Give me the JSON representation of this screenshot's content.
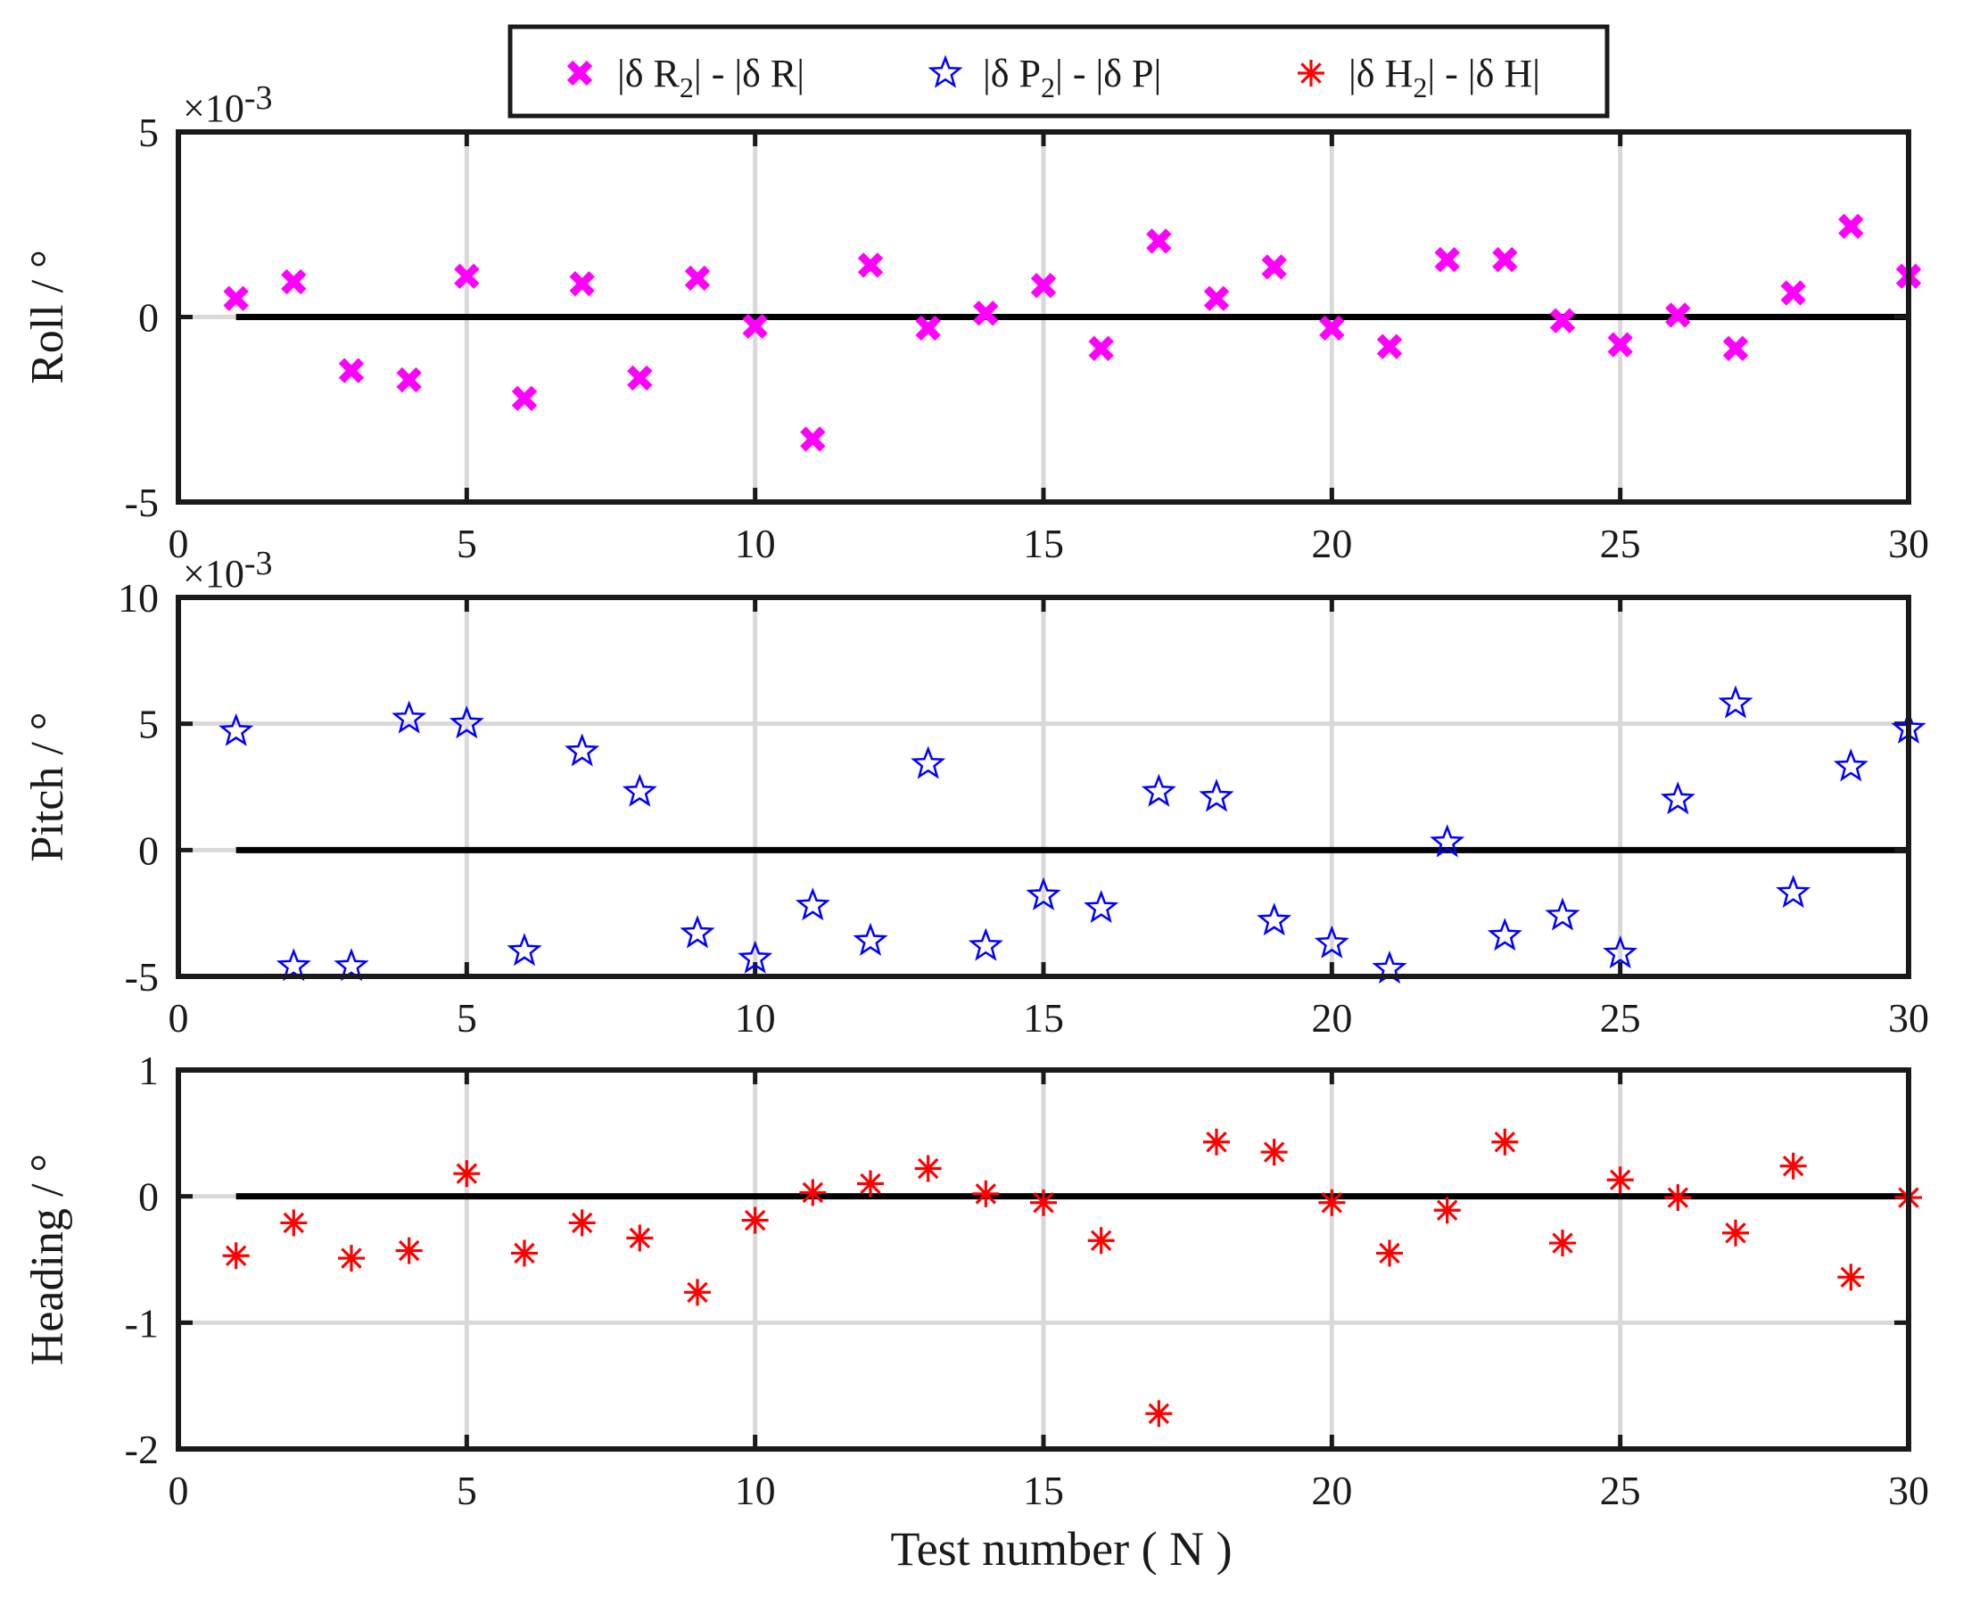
{
  "chart_data": [
    {
      "type": "scatter",
      "id": "roll",
      "ylabel": "Roll / °",
      "multiplier": "×10",
      "multiplier_exp": "-3",
      "xlim": [
        0,
        30
      ],
      "ylim": [
        -5,
        5
      ],
      "xticks": [
        0,
        5,
        10,
        15,
        20,
        25,
        30
      ],
      "yticks": [
        -5,
        0,
        5
      ],
      "grid": true,
      "marker": "x",
      "color": "#ff00ff",
      "series": [
        {
          "name": "|δ R2| - |δ R|",
          "x": [
            1,
            2,
            3,
            4,
            5,
            6,
            7,
            8,
            9,
            10,
            11,
            12,
            13,
            14,
            15,
            16,
            17,
            18,
            19,
            20,
            21,
            22,
            23,
            24,
            25,
            26,
            27,
            28,
            29,
            30
          ],
          "values": [
            0.5,
            0.95,
            -1.45,
            -1.7,
            1.1,
            -2.2,
            0.9,
            -1.65,
            1.05,
            -0.25,
            -3.3,
            1.4,
            -0.3,
            0.1,
            0.85,
            -0.85,
            2.05,
            0.5,
            1.35,
            -0.3,
            -0.8,
            1.55,
            1.55,
            -0.1,
            -0.75,
            0.05,
            -0.85,
            0.65,
            2.45,
            1.1
          ]
        }
      ]
    },
    {
      "type": "scatter",
      "id": "pitch",
      "ylabel": "Pitch / °",
      "multiplier": "×10",
      "multiplier_exp": "-3",
      "xlim": [
        0,
        30
      ],
      "ylim": [
        -5,
        10
      ],
      "xticks": [
        0,
        5,
        10,
        15,
        20,
        25,
        30
      ],
      "yticks": [
        -5,
        0,
        5,
        10
      ],
      "grid": true,
      "marker": "pentagram",
      "color": "#0000ff",
      "series": [
        {
          "name": "|δ P2| - |δ P|",
          "x": [
            1,
            2,
            3,
            4,
            5,
            6,
            7,
            8,
            9,
            10,
            11,
            12,
            13,
            14,
            15,
            16,
            17,
            18,
            19,
            20,
            21,
            22,
            23,
            24,
            25,
            26,
            27,
            28,
            29,
            30
          ],
          "values": [
            4.7,
            -4.6,
            -4.6,
            5.2,
            5.0,
            -4.0,
            3.9,
            2.3,
            -3.3,
            -4.3,
            -2.2,
            -3.6,
            3.4,
            -3.8,
            -1.8,
            -2.3,
            2.3,
            2.1,
            -2.8,
            -3.7,
            -4.7,
            0.3,
            -3.4,
            -2.6,
            -4.1,
            2.0,
            5.8,
            -1.7,
            3.3,
            4.8
          ]
        }
      ]
    },
    {
      "type": "scatter",
      "id": "heading",
      "ylabel": "Heading / °",
      "xlabel": "Test number ( N )",
      "xlim": [
        0,
        30
      ],
      "ylim": [
        -2,
        1
      ],
      "xticks": [
        0,
        5,
        10,
        15,
        20,
        25,
        30
      ],
      "yticks": [
        -2,
        -1,
        0,
        1
      ],
      "grid": true,
      "marker": "asterisk",
      "color": "#ff0000",
      "series": [
        {
          "name": "|δ H2| - |δ H|",
          "x": [
            1,
            2,
            3,
            4,
            5,
            6,
            7,
            8,
            9,
            10,
            11,
            12,
            13,
            14,
            15,
            16,
            17,
            18,
            19,
            20,
            21,
            22,
            23,
            24,
            25,
            26,
            27,
            28,
            29,
            30
          ],
          "values": [
            -0.47,
            -0.21,
            -0.49,
            -0.43,
            0.18,
            -0.45,
            -0.21,
            -0.33,
            -0.76,
            -0.19,
            0.03,
            0.1,
            0.22,
            0.02,
            -0.05,
            -0.35,
            -1.72,
            0.43,
            0.35,
            -0.05,
            -0.45,
            -0.11,
            0.43,
            -0.37,
            0.13,
            -0.01,
            -0.29,
            0.24,
            -0.64,
            -0.01
          ]
        }
      ]
    }
  ],
  "legend": {
    "items": [
      {
        "prefix": "|δ R",
        "sub": "2",
        "suffix": "| - |δ R|",
        "marker": "x",
        "color": "#ff00ff"
      },
      {
        "prefix": "|δ P",
        "sub": "2",
        "suffix": "| - |δ P|",
        "marker": "pentagram",
        "color": "#0000ff"
      },
      {
        "prefix": "|δ H",
        "sub": "2",
        "suffix": "| - |δ H|",
        "marker": "asterisk",
        "color": "#ff0000"
      }
    ]
  },
  "zero_line_color": "#000000",
  "grid_color": "#d9d9d9"
}
